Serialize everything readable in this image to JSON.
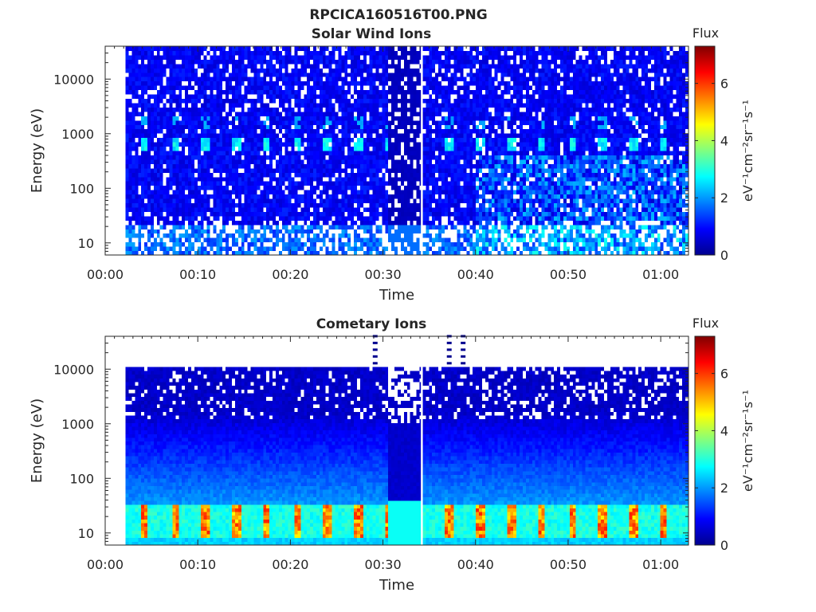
{
  "figure_title": "RPCICA160516T00.PNG",
  "colorbar_scale": [
    "#00008f",
    "#0000ff",
    "#0080ff",
    "#00ffff",
    "#80ff80",
    "#ffff00",
    "#ff8000",
    "#ff0000",
    "#800000"
  ],
  "chart_data": [
    {
      "type": "heatmap",
      "title": "Solar Wind Ions",
      "xlabel": "Time",
      "ylabel": "Energy (eV)",
      "x_unit": "minutes after 00:00",
      "xlim": [
        0,
        63
      ],
      "x_ticks": [
        0,
        10,
        20,
        30,
        40,
        50,
        60
      ],
      "x_tick_labels": [
        "00:00",
        "00:10",
        "00:20",
        "00:30",
        "00:40",
        "00:50",
        "01:00"
      ],
      "y_scale": "log",
      "ylim": [
        6,
        40000
      ],
      "y_ticks": [
        10,
        100,
        1000,
        10000
      ],
      "y_tick_labels": [
        "10",
        "100",
        "1000",
        "10000"
      ],
      "data_time_range": [
        2.2,
        63
      ],
      "data_gap_minutes": 34.2,
      "colorbar": {
        "title": "Flux",
        "label": "eV⁻¹cm⁻²sr⁻¹s⁻¹",
        "range": [
          0,
          7.3
        ],
        "ticks": [
          0,
          2,
          4,
          6
        ]
      },
      "features": [
        {
          "description": "background flux",
          "energy_range_eV": [
            6,
            40000
          ],
          "value": 0.8
        },
        {
          "description": "periodic solar wind peaks",
          "energy_eV": 650,
          "period_min": 3.3,
          "value": 2.5
        },
        {
          "description": "secondary peaks",
          "energy_eV": 1600,
          "value": 1.8
        },
        {
          "description": "low energy",
          "energy_range_eV": [
            6,
            20
          ],
          "value": 1.8
        }
      ]
    },
    {
      "type": "heatmap",
      "title": "Cometary Ions",
      "xlabel": "Time",
      "ylabel": "Energy (eV)",
      "x_unit": "minutes after 00:00",
      "xlim": [
        0,
        63
      ],
      "x_ticks": [
        0,
        10,
        20,
        30,
        40,
        50,
        60
      ],
      "x_tick_labels": [
        "00:00",
        "00:10",
        "00:20",
        "00:30",
        "00:40",
        "00:50",
        "01:00"
      ],
      "y_scale": "log",
      "ylim": [
        6,
        40000
      ],
      "y_ticks": [
        10,
        100,
        1000,
        10000
      ],
      "y_tick_labels": [
        "10",
        "100",
        "1000",
        "10000"
      ],
      "data_time_range": [
        2.2,
        63
      ],
      "data_max_energy_eV": 11000,
      "data_gap_minutes": 34.2,
      "colorbar": {
        "title": "Flux",
        "label": "eV⁻¹cm⁻²sr⁻¹s⁻¹",
        "range": [
          0,
          7.3
        ],
        "ticks": [
          0,
          2,
          4,
          6
        ]
      },
      "features": [
        {
          "description": "periodic cometary ion peaks",
          "energy_range_eV": [
            8,
            30
          ],
          "period_min": 3.3,
          "value": 5.3
        },
        {
          "description": "low energy background",
          "energy_range_eV": [
            30,
            300
          ],
          "value": 1.8
        },
        {
          "description": "high energy background",
          "energy_range_eV": [
            1000,
            11000
          ],
          "value": 0.6
        }
      ]
    }
  ]
}
